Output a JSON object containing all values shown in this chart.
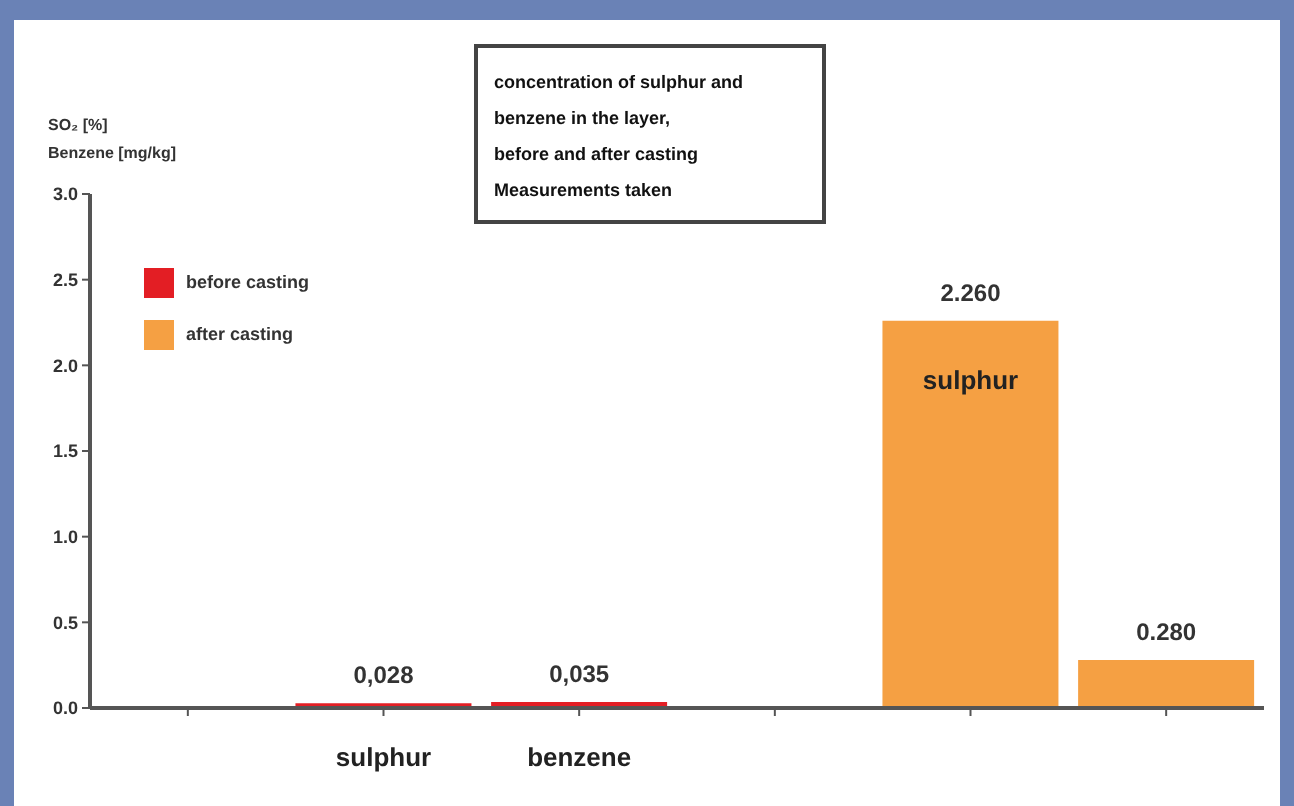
{
  "chart_data": {
    "type": "bar",
    "title": "concentration of sulphur and\nbenzene in the layer,\nbefore and after casting\nMeasurements taken",
    "ylabel": "SO₂ [%]\nBenzene [mg/kg]",
    "categories": [
      null,
      "sulphur",
      "benzene",
      null,
      null,
      null
    ],
    "series": [
      {
        "name": "before casting",
        "color": "#e31e24",
        "values": [
          null,
          0.028,
          0.035,
          null,
          null,
          null
        ],
        "value_labels": [
          null,
          "0,028",
          "0,035",
          null,
          null,
          null
        ]
      },
      {
        "name": "after casting",
        "color": "#f5a043",
        "values": [
          null,
          null,
          null,
          null,
          2.26,
          0.28
        ],
        "value_labels": [
          null,
          null,
          null,
          null,
          "2.260",
          "0.280"
        ]
      }
    ],
    "annotations": [
      "sulphur"
    ],
    "ylim": [
      0,
      3
    ],
    "yticks": [
      {
        "value": 0,
        "label": "0.0"
      },
      {
        "value": 0.5,
        "label": "0.5"
      },
      {
        "value": 1,
        "label": "1.0"
      },
      {
        "value": 1.5,
        "label": "1.5"
      },
      {
        "value": 2,
        "label": "2.0"
      },
      {
        "value": 2.5,
        "label": "2.5"
      },
      {
        "value": 3,
        "label": "3.0"
      }
    ],
    "legend": "top left",
    "grid": false
  }
}
